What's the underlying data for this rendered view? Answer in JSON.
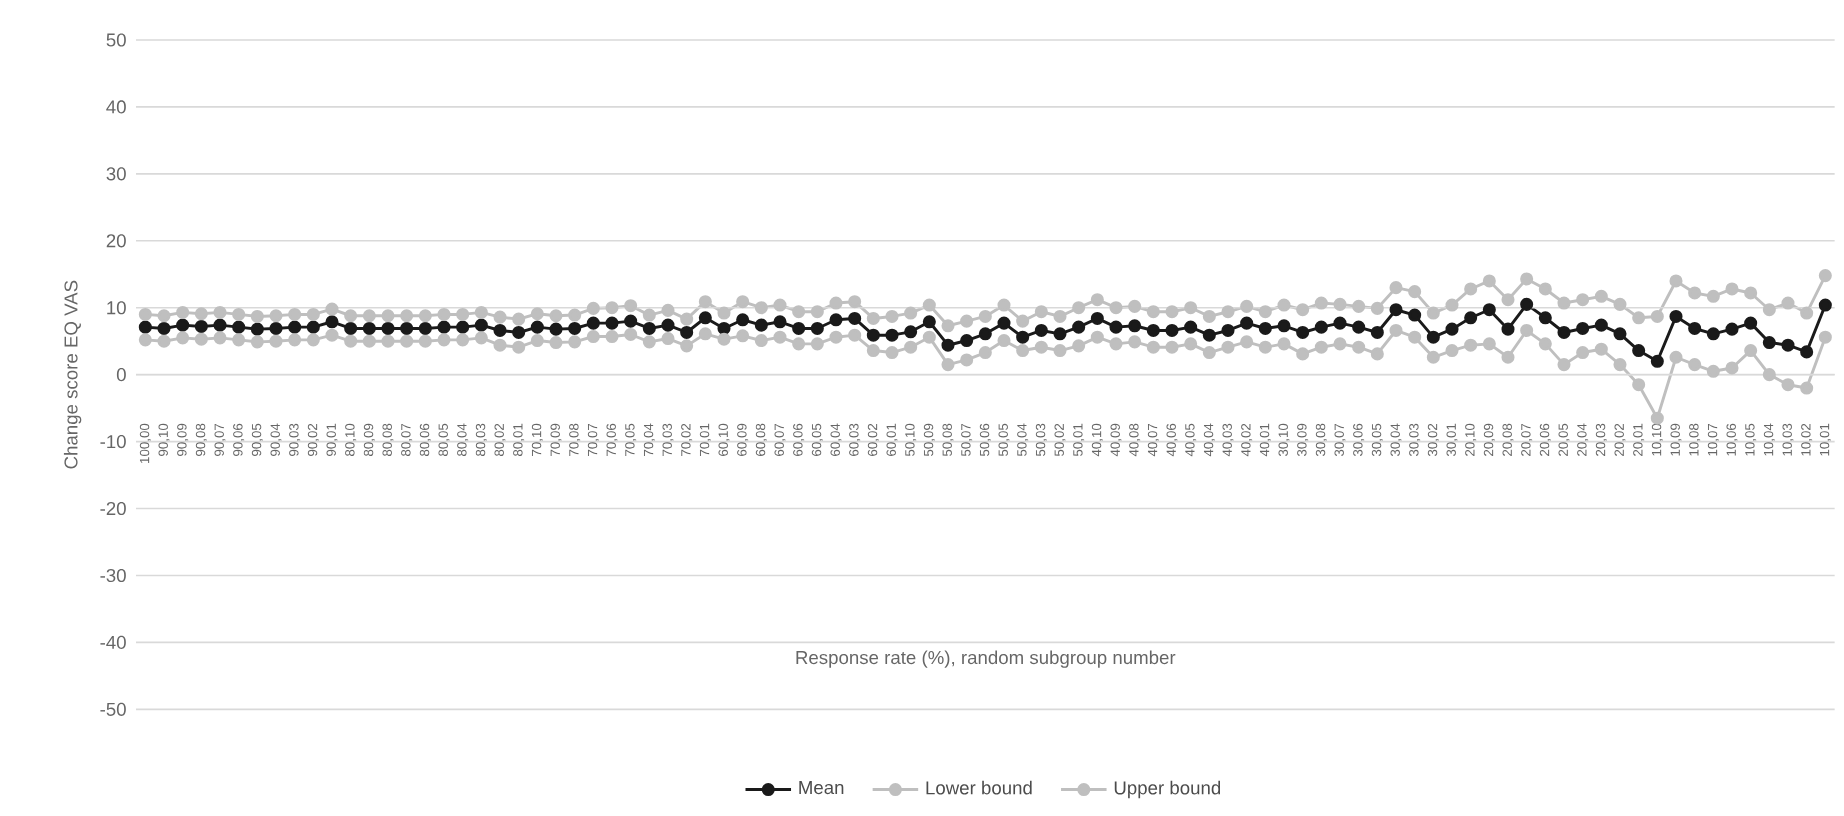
{
  "chart_data": {
    "type": "line",
    "xlabel": "Response rate (%), random subgroup number",
    "ylabel": "Change score EQ VAS",
    "categories": [
      "100,00",
      "90,10",
      "90,09",
      "90,08",
      "90,07",
      "90,06",
      "90,05",
      "90,04",
      "90,03",
      "90,02",
      "90,01",
      "80,10",
      "80,09",
      "80,08",
      "80,07",
      "80,06",
      "80,05",
      "80,04",
      "80,03",
      "80,02",
      "80,01",
      "70,10",
      "70,09",
      "70,08",
      "70,07",
      "70,06",
      "70,05",
      "70,04",
      "70,03",
      "70,02",
      "70,01",
      "60,10",
      "60,09",
      "60,08",
      "60,07",
      "60,06",
      "60,05",
      "60,04",
      "60,03",
      "60,02",
      "60,01",
      "50,10",
      "50,09",
      "50,08",
      "50,07",
      "50,06",
      "50,05",
      "50,04",
      "50,03",
      "50,02",
      "50,01",
      "40,10",
      "40,09",
      "40,08",
      "40,07",
      "40,06",
      "40,05",
      "40,04",
      "40,03",
      "40,02",
      "40,01",
      "30,10",
      "30,09",
      "30,08",
      "30,07",
      "30,06",
      "30,05",
      "30,04",
      "30,03",
      "30,02",
      "30,01",
      "20,10",
      "20,09",
      "20,08",
      "20,07",
      "20,06",
      "20,05",
      "20,04",
      "20,03",
      "20,02",
      "20,01",
      "10,10",
      "10,09",
      "10,08",
      "10,07",
      "10,06",
      "10,05",
      "10,04",
      "10,03",
      "10,02",
      "10,01"
    ],
    "series": [
      {
        "name": "Mean",
        "color": "#1a1a1a",
        "values": [
          7.1,
          6.9,
          7.4,
          7.2,
          7.4,
          7.1,
          6.8,
          6.9,
          7.1,
          7.1,
          7.9,
          6.9,
          6.9,
          6.9,
          6.9,
          6.9,
          7.1,
          7.1,
          7.4,
          6.6,
          6.3,
          7.1,
          6.8,
          6.9,
          7.7,
          7.7,
          8.0,
          6.9,
          7.4,
          6.3,
          8.5,
          6.9,
          8.2,
          7.4,
          7.9,
          6.9,
          6.9,
          8.2,
          8.4,
          5.9,
          5.9,
          6.4,
          7.9,
          4.4,
          5.1,
          6.1,
          7.7,
          5.6,
          6.6,
          6.1,
          7.1,
          8.4,
          7.1,
          7.3,
          6.6,
          6.6,
          7.1,
          5.9,
          6.6,
          7.7,
          6.9,
          7.3,
          6.3,
          7.1,
          7.7,
          7.1,
          6.3,
          9.7,
          8.9,
          5.6,
          6.8,
          8.5,
          9.7,
          6.8,
          10.5,
          8.5,
          6.3,
          6.9,
          7.4,
          6.1,
          3.6,
          2.0,
          8.7,
          6.9,
          6.1,
          6.8,
          7.7,
          4.8,
          4.4,
          3.4,
          10.4
        ]
      },
      {
        "name": "Lower bound",
        "color": "#bfbfbf",
        "values": [
          5.2,
          5.0,
          5.5,
          5.3,
          5.5,
          5.2,
          4.9,
          5.0,
          5.2,
          5.2,
          5.9,
          5.0,
          5.0,
          5.0,
          5.0,
          5.0,
          5.2,
          5.2,
          5.5,
          4.4,
          4.1,
          5.1,
          4.8,
          4.9,
          5.7,
          5.7,
          6.0,
          4.9,
          5.4,
          4.3,
          6.1,
          5.3,
          5.8,
          5.1,
          5.6,
          4.6,
          4.6,
          5.6,
          5.9,
          3.6,
          3.3,
          4.1,
          5.6,
          1.5,
          2.2,
          3.3,
          5.1,
          3.6,
          4.1,
          3.6,
          4.3,
          5.6,
          4.6,
          4.9,
          4.1,
          4.1,
          4.6,
          3.3,
          4.1,
          4.9,
          4.1,
          4.6,
          3.1,
          4.1,
          4.6,
          4.1,
          3.1,
          6.6,
          5.6,
          2.6,
          3.6,
          4.4,
          4.6,
          2.6,
          6.6,
          4.6,
          1.5,
          3.3,
          3.8,
          1.5,
          -1.5,
          -6.5,
          2.6,
          1.5,
          0.5,
          1.0,
          3.6,
          0.0,
          -1.5,
          -2.0,
          5.6
        ]
      },
      {
        "name": "Upper bound",
        "color": "#bfbfbf",
        "values": [
          9.0,
          8.8,
          9.3,
          9.1,
          9.3,
          9.0,
          8.7,
          8.8,
          9.0,
          9.0,
          9.8,
          8.8,
          8.8,
          8.8,
          8.8,
          8.8,
          9.0,
          9.0,
          9.3,
          8.6,
          8.3,
          9.1,
          8.8,
          8.9,
          9.9,
          10.0,
          10.3,
          8.9,
          9.6,
          8.3,
          10.9,
          9.2,
          10.9,
          10.0,
          10.4,
          9.4,
          9.4,
          10.7,
          10.9,
          8.4,
          8.7,
          9.2,
          10.4,
          7.3,
          8.0,
          8.7,
          10.4,
          8.0,
          9.4,
          8.7,
          10.0,
          11.2,
          10.0,
          10.2,
          9.4,
          9.4,
          10.0,
          8.7,
          9.4,
          10.2,
          9.4,
          10.4,
          9.7,
          10.7,
          10.5,
          10.2,
          9.9,
          13.0,
          12.4,
          9.2,
          10.4,
          12.8,
          14.0,
          11.2,
          14.3,
          12.8,
          10.7,
          11.2,
          11.7,
          10.5,
          8.5,
          8.7,
          14.0,
          12.2,
          11.7,
          12.8,
          12.2,
          9.7,
          10.7,
          9.2,
          14.8
        ]
      }
    ],
    "ylim": [
      -50,
      50
    ],
    "yticks": [
      -50,
      -40,
      -30,
      -20,
      -10,
      0,
      10,
      20,
      30,
      40,
      50
    ],
    "grid": "y",
    "legend": "bottom",
    "marker": "circle",
    "line_style": "solid"
  }
}
